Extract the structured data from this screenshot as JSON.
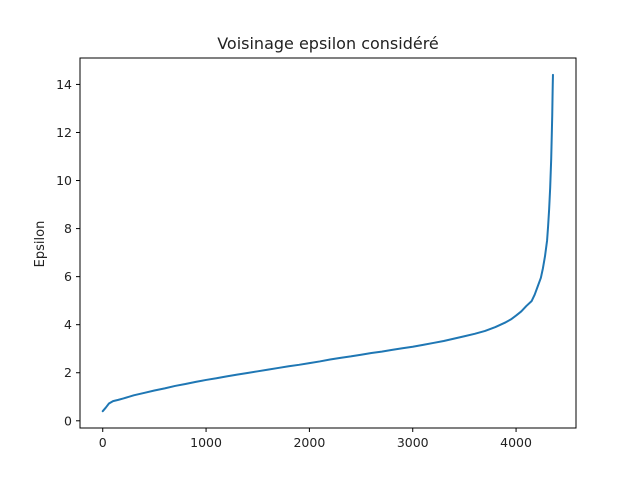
{
  "chart_data": {
    "type": "line",
    "title": "Voisinage epsilon considéré",
    "xlabel": "",
    "ylabel": "Epsilon",
    "xlim": [
      -220,
      4580
    ],
    "ylim": [
      -0.3,
      15.1
    ],
    "x_ticks": [
      0,
      1000,
      2000,
      3000,
      4000
    ],
    "y_ticks": [
      0,
      2,
      4,
      6,
      8,
      10,
      12,
      14
    ],
    "grid": false,
    "series": [
      {
        "color": "#1f77b4",
        "x": [
          0,
          30,
          60,
          100,
          150,
          200,
          300,
          400,
          500,
          600,
          700,
          800,
          900,
          1000,
          1100,
          1200,
          1300,
          1400,
          1500,
          1600,
          1700,
          1800,
          1900,
          2000,
          2100,
          2200,
          2300,
          2400,
          2500,
          2600,
          2700,
          2800,
          2900,
          3000,
          3100,
          3200,
          3300,
          3400,
          3500,
          3600,
          3700,
          3800,
          3850,
          3900,
          3950,
          4000,
          4050,
          4100,
          4150,
          4180,
          4210,
          4240,
          4260,
          4280,
          4300,
          4310,
          4320,
          4330,
          4340,
          4345,
          4350,
          4353,
          4355,
          4357
        ],
        "y": [
          0.4,
          0.55,
          0.72,
          0.82,
          0.87,
          0.93,
          1.06,
          1.16,
          1.26,
          1.35,
          1.45,
          1.53,
          1.62,
          1.7,
          1.77,
          1.85,
          1.92,
          1.99,
          2.06,
          2.13,
          2.2,
          2.27,
          2.33,
          2.4,
          2.47,
          2.55,
          2.62,
          2.68,
          2.75,
          2.82,
          2.88,
          2.95,
          3.02,
          3.08,
          3.16,
          3.24,
          3.32,
          3.42,
          3.52,
          3.62,
          3.74,
          3.9,
          4.0,
          4.1,
          4.22,
          4.38,
          4.55,
          4.78,
          4.98,
          5.25,
          5.6,
          5.95,
          6.35,
          6.85,
          7.5,
          8.1,
          8.8,
          9.7,
          10.9,
          11.8,
          12.7,
          13.5,
          14.0,
          14.4
        ]
      }
    ]
  }
}
